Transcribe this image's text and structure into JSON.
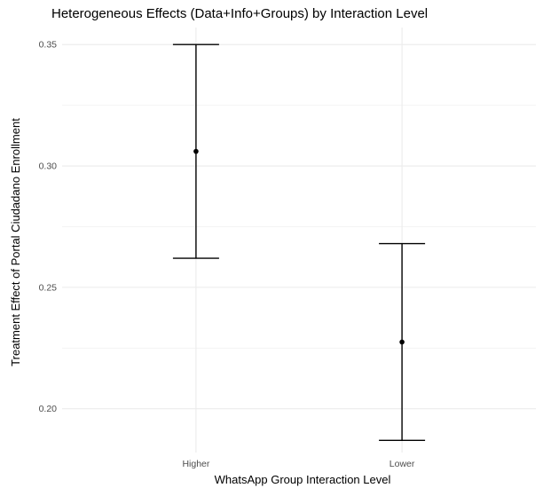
{
  "chart_data": {
    "type": "errorbar",
    "title": "Heterogeneous Effects (Data+Info+Groups) by Interaction Level",
    "xlabel": "WhatsApp Group Interaction Level",
    "ylabel": "Treatment Effect of Portal Ciudadano Enrollment",
    "categories": [
      "Higher",
      "Lower"
    ],
    "series": [
      {
        "estimates": [
          0.306,
          0.2275
        ],
        "lower": [
          0.262,
          0.187
        ],
        "upper": [
          0.35,
          0.268
        ]
      }
    ],
    "ylim": [
      0.182,
      0.357
    ],
    "yticks": [
      0.2,
      0.25,
      0.3,
      0.35
    ],
    "ytick_labels": [
      "0.20",
      "0.25",
      "0.30",
      "0.35"
    ],
    "grid": true,
    "legend": "none",
    "colors": {
      "point": "#000000",
      "errorbar": "#000000",
      "grid_major": "#ebebeb",
      "grid_minor": "#f2f2f2",
      "tick_text": "#4d4d4d"
    }
  }
}
